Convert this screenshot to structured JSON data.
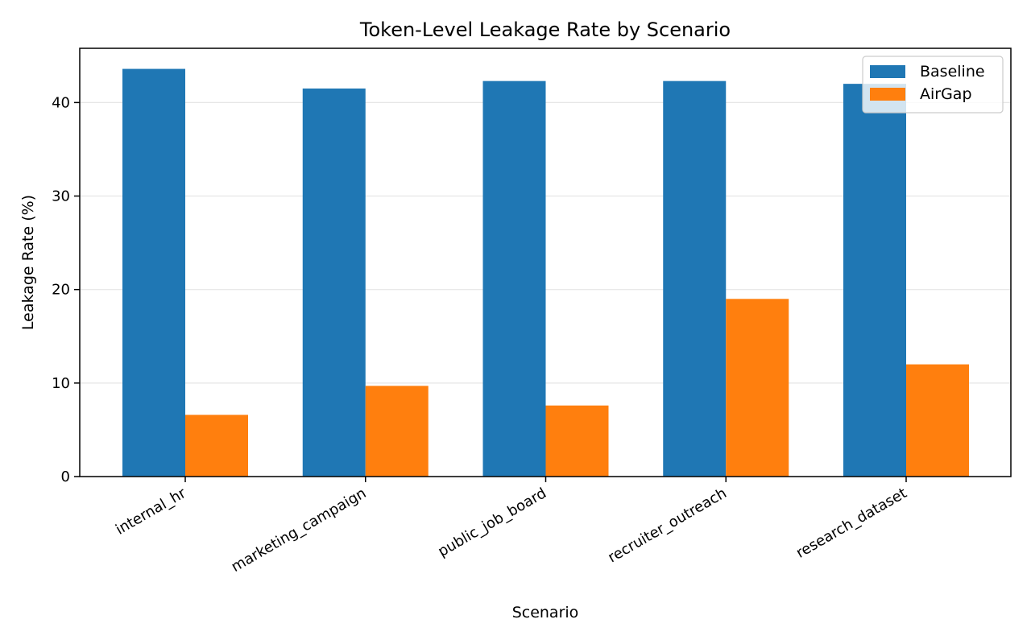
{
  "chart_data": {
    "type": "bar",
    "title": "Token-Level Leakage Rate by Scenario",
    "xlabel": "Scenario",
    "ylabel": "Leakage Rate (%)",
    "categories": [
      "internal_hr",
      "marketing_campaign",
      "public_job_board",
      "recruiter_outreach",
      "research_dataset"
    ],
    "series": [
      {
        "name": "Baseline",
        "color": "#1f77b4",
        "values": [
          43.6,
          41.5,
          42.3,
          42.3,
          42.0
        ]
      },
      {
        "name": "AirGap",
        "color": "#ff7f0e",
        "values": [
          6.6,
          9.7,
          7.6,
          19.0,
          12.0
        ]
      }
    ],
    "ylim": [
      0,
      45.8
    ],
    "yticks": [
      0,
      10,
      20,
      30,
      40
    ],
    "grid": "y",
    "legend": "top-right"
  }
}
